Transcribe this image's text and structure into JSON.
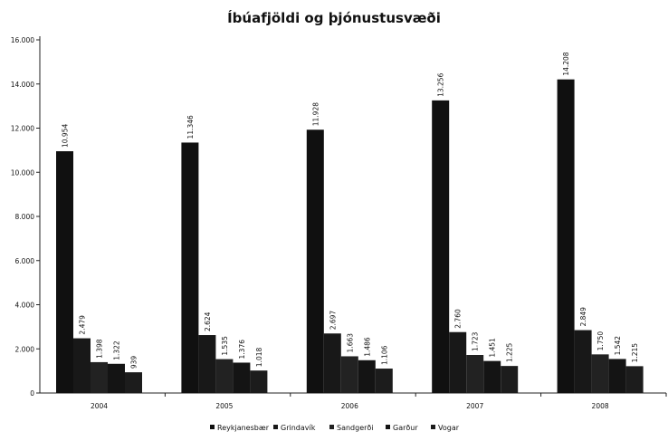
{
  "chart_data": {
    "type": "bar",
    "title": "Íbúafjöldi og þjónustusvæði",
    "xlabel": "",
    "ylabel": "",
    "ylim": [
      0,
      16000
    ],
    "yticks": [
      "0",
      "2.000",
      "4.000",
      "6.000",
      "8.000",
      "10.000",
      "12.000",
      "14.000",
      "16.000"
    ],
    "categories": [
      "2004",
      "2005",
      "2006",
      "2007",
      "2008"
    ],
    "series": [
      {
        "name": "Reykjanesbær",
        "values": [
          10954,
          11346,
          11928,
          13256,
          14208
        ],
        "labels": [
          "10.954",
          "11.346",
          "11.928",
          "13.256",
          "14.208"
        ]
      },
      {
        "name": "Grindavík",
        "values": [
          2479,
          2624,
          2697,
          2760,
          2849
        ],
        "labels": [
          "2.479",
          "2.624",
          "2.697",
          "2.760",
          "2.849"
        ]
      },
      {
        "name": "Sandgerði",
        "values": [
          1398,
          1535,
          1663,
          1723,
          1750
        ],
        "labels": [
          "1.398",
          "1.535",
          "1.663",
          "1.723",
          "1.750"
        ]
      },
      {
        "name": "Garður",
        "values": [
          1322,
          1376,
          1486,
          1451,
          1542
        ],
        "labels": [
          "1.322",
          "1.376",
          "1.486",
          "1.451",
          "1.542"
        ]
      },
      {
        "name": "Vogar",
        "values": [
          939,
          1018,
          1106,
          1225,
          1215
        ],
        "labels": [
          "939",
          "1.018",
          "1.106",
          "1.225",
          "1.215"
        ]
      }
    ],
    "colors": [
      "#101010",
      "#181818",
      "#222222",
      "#141414",
      "#1c1c1c"
    ],
    "legend_position": "bottom",
    "grid": false
  }
}
